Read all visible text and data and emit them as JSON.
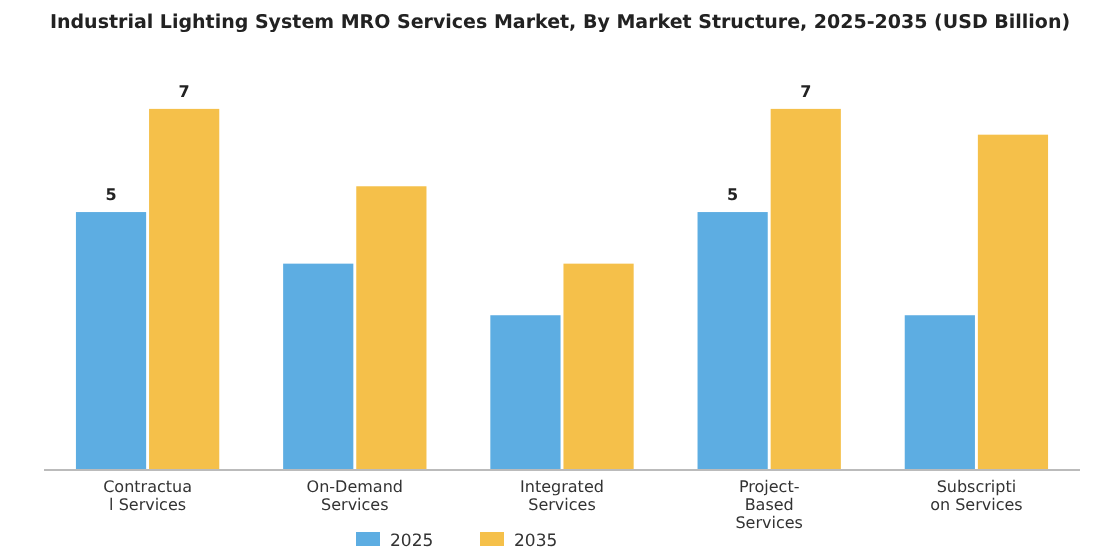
{
  "chart_data": {
    "type": "bar",
    "title": "Industrial Lighting System MRO Services Market, By Market Structure, 2025-2035 (USD Billion)",
    "categories": [
      "Contractua\nl Services",
      "On-Demand\nServices",
      "Integrated\nServices",
      "Project-\nBased\nServices",
      "Subscripti\non Services"
    ],
    "series": [
      {
        "name": "2025",
        "color": "#5dade2",
        "values": [
          5,
          4,
          3,
          5,
          3
        ],
        "value_labels": [
          "5",
          null,
          null,
          "5",
          null
        ]
      },
      {
        "name": "2035",
        "color": "#f5c04a",
        "values": [
          7,
          5.5,
          4,
          7,
          6.5
        ],
        "value_labels": [
          "7",
          null,
          null,
          "7",
          null
        ]
      }
    ],
    "legend": "bottom",
    "grid": false
  }
}
